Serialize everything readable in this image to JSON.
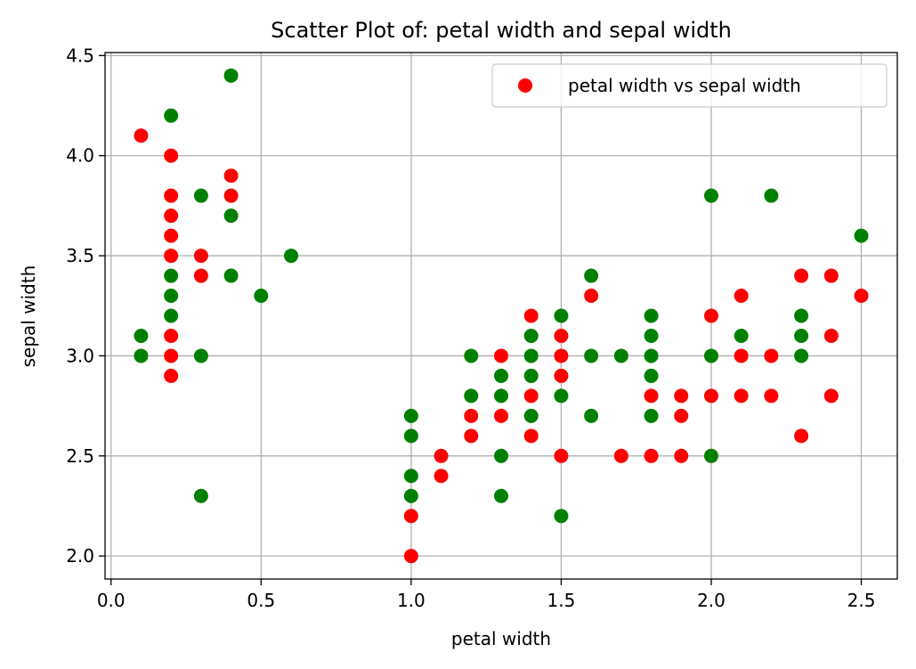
{
  "chart_data": {
    "type": "scatter",
    "title": "Scatter Plot of: petal width and sepal width",
    "xlabel": "petal width",
    "ylabel": "sepal width",
    "xlim": [
      -0.02,
      2.62
    ],
    "ylim": [
      1.885,
      4.515
    ],
    "xticks": [
      0.0,
      0.5,
      1.0,
      1.5,
      2.0,
      2.5
    ],
    "xtick_labels": [
      "0.0",
      "0.5",
      "1.0",
      "1.5",
      "2.0",
      "2.5"
    ],
    "yticks": [
      2.0,
      2.5,
      3.0,
      3.5,
      4.0,
      4.5
    ],
    "ytick_labels": [
      "2.0",
      "2.5",
      "3.0",
      "3.5",
      "4.0",
      "4.5"
    ],
    "grid": true,
    "legend": {
      "placement": "top-right",
      "entries": [
        "petal width vs sepal width"
      ]
    },
    "colors": {
      "red": "#ff0000",
      "green": "#008000"
    },
    "series": [
      {
        "name": "petal width vs sepal width",
        "color": "#ff0000",
        "points": [
          [
            0.1,
            4.1
          ],
          [
            0.2,
            4.0
          ],
          [
            0.2,
            3.8
          ],
          [
            0.2,
            3.7
          ],
          [
            0.2,
            3.6
          ],
          [
            0.2,
            3.5
          ],
          [
            0.2,
            3.1
          ],
          [
            0.2,
            3.0
          ],
          [
            0.2,
            2.9
          ],
          [
            0.3,
            3.5
          ],
          [
            0.3,
            3.4
          ],
          [
            0.4,
            3.9
          ],
          [
            0.4,
            3.8
          ],
          [
            1.0,
            2.2
          ],
          [
            1.0,
            2.0
          ],
          [
            1.1,
            2.5
          ],
          [
            1.1,
            2.4
          ],
          [
            1.2,
            2.7
          ],
          [
            1.2,
            2.6
          ],
          [
            1.3,
            3.0
          ],
          [
            1.3,
            2.7
          ],
          [
            1.4,
            3.2
          ],
          [
            1.4,
            2.8
          ],
          [
            1.4,
            2.6
          ],
          [
            1.5,
            3.1
          ],
          [
            1.5,
            3.0
          ],
          [
            1.5,
            2.9
          ],
          [
            1.5,
            2.5
          ],
          [
            1.6,
            3.3
          ],
          [
            1.7,
            2.5
          ],
          [
            1.8,
            2.8
          ],
          [
            1.8,
            2.5
          ],
          [
            1.9,
            2.8
          ],
          [
            1.9,
            2.7
          ],
          [
            1.9,
            2.5
          ],
          [
            2.0,
            3.2
          ],
          [
            2.0,
            2.8
          ],
          [
            2.1,
            3.3
          ],
          [
            2.1,
            3.0
          ],
          [
            2.1,
            2.8
          ],
          [
            2.2,
            3.0
          ],
          [
            2.2,
            2.8
          ],
          [
            2.3,
            3.4
          ],
          [
            2.3,
            2.6
          ],
          [
            2.4,
            3.4
          ],
          [
            2.4,
            3.1
          ],
          [
            2.4,
            2.8
          ],
          [
            2.5,
            3.3
          ]
        ]
      },
      {
        "color": "#008000",
        "points": [
          [
            0.1,
            3.1
          ],
          [
            0.1,
            3.0
          ],
          [
            0.2,
            4.2
          ],
          [
            0.2,
            3.4
          ],
          [
            0.2,
            3.3
          ],
          [
            0.2,
            3.2
          ],
          [
            0.3,
            3.8
          ],
          [
            0.3,
            3.0
          ],
          [
            0.3,
            2.3
          ],
          [
            0.4,
            4.4
          ],
          [
            0.4,
            3.7
          ],
          [
            0.4,
            3.4
          ],
          [
            0.5,
            3.3
          ],
          [
            0.6,
            3.5
          ],
          [
            1.0,
            2.7
          ],
          [
            1.0,
            2.6
          ],
          [
            1.0,
            2.4
          ],
          [
            1.0,
            2.3
          ],
          [
            1.2,
            3.0
          ],
          [
            1.2,
            2.8
          ],
          [
            1.3,
            2.9
          ],
          [
            1.3,
            2.8
          ],
          [
            1.3,
            2.5
          ],
          [
            1.3,
            2.3
          ],
          [
            1.4,
            3.1
          ],
          [
            1.4,
            3.0
          ],
          [
            1.4,
            2.9
          ],
          [
            1.4,
            2.7
          ],
          [
            1.5,
            3.2
          ],
          [
            1.5,
            2.8
          ],
          [
            1.5,
            2.2
          ],
          [
            1.6,
            3.4
          ],
          [
            1.6,
            3.0
          ],
          [
            1.6,
            2.7
          ],
          [
            1.7,
            3.0
          ],
          [
            1.8,
            3.2
          ],
          [
            1.8,
            3.1
          ],
          [
            1.8,
            3.0
          ],
          [
            1.8,
            2.9
          ],
          [
            1.8,
            2.7
          ],
          [
            2.0,
            3.8
          ],
          [
            2.0,
            3.0
          ],
          [
            2.0,
            2.5
          ],
          [
            2.1,
            3.1
          ],
          [
            2.2,
            3.8
          ],
          [
            2.3,
            3.2
          ],
          [
            2.3,
            3.1
          ],
          [
            2.3,
            3.0
          ],
          [
            2.5,
            3.6
          ]
        ]
      }
    ]
  }
}
